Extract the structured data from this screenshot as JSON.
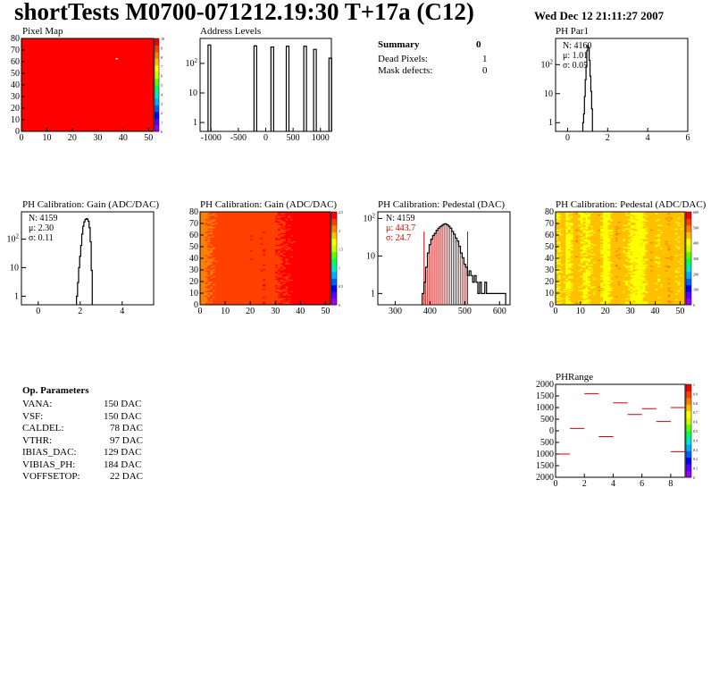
{
  "header": {
    "title": "shortTests M0700-071212.19:30 T+17a (C12)",
    "date": "Wed Dec 12 21:11:27 2007"
  },
  "colors": {
    "frame": "#000000",
    "hist_line": "#000000",
    "fit_red": "#d40000",
    "palette": [
      "#9b00ff",
      "#5a00ff",
      "#0000ff",
      "#0060ff",
      "#00b0ff",
      "#00e8c8",
      "#00ff60",
      "#60ff00",
      "#c8ff00",
      "#ffff00",
      "#ffc000",
      "#ff8000",
      "#ff4000",
      "#ff0000"
    ]
  },
  "summary": {
    "heading": "Summary",
    "heading_value": "0",
    "rows": [
      {
        "label": "Dead Pixels:",
        "value": "1"
      },
      {
        "label": "Mask defects:",
        "value": "0"
      }
    ]
  },
  "op_params": {
    "heading": "Op. Parameters",
    "rows": [
      {
        "name": "VANA:",
        "value": "150 DAC"
      },
      {
        "name": "VSF:",
        "value": "150 DAC"
      },
      {
        "name": "CALDEL:",
        "value": "78 DAC"
      },
      {
        "name": "VTHR:",
        "value": "97 DAC"
      },
      {
        "name": "IBIAS_DAC:",
        "value": "129 DAC"
      },
      {
        "name": "VIBIAS_PH:",
        "value": "184 DAC"
      },
      {
        "name": "VOFFSETOP:",
        "value": "22 DAC"
      }
    ]
  },
  "stats": {
    "ph_par1": {
      "n": "N: 4160",
      "mu": "μ: 1.01",
      "sigma": "σ: 0.05"
    },
    "gain": {
      "n": "N: 4159",
      "mu": "μ: 2.30",
      "sigma": "σ: 0.11"
    },
    "pedestal": {
      "n": "N: 4159",
      "mu": "μ: 443.7",
      "sigma": "σ: 24.7"
    }
  },
  "chart_data": [
    {
      "id": "pixel_map",
      "type": "heatmap",
      "title": "Pixel Map",
      "xlim": [
        0,
        52
      ],
      "ylim": [
        0,
        80
      ],
      "x_ticks": [
        "0",
        "10",
        "20",
        "30",
        "40",
        "50"
      ],
      "y_ticks": [
        "0",
        "10",
        "20",
        "30",
        "40",
        "50",
        "60",
        "70",
        "80"
      ],
      "z_range": [
        0,
        10
      ],
      "z_ticks": [
        "0",
        "1",
        "2",
        "3",
        "4",
        "5",
        "6",
        "7",
        "8",
        "9",
        "10"
      ],
      "fill_value": 10,
      "dead_pixels": [
        {
          "col": 37,
          "row": 62
        }
      ]
    },
    {
      "id": "address_levels",
      "type": "bar",
      "title": "Address Levels",
      "log_y": true,
      "xlim": [
        -1200,
        1200
      ],
      "x_ticks": [
        "-1000",
        "-500",
        "0",
        "500",
        "1000"
      ],
      "y_ticks": [
        "1",
        "10",
        "10^2"
      ],
      "peaks": [
        {
          "x": -1030,
          "height": 420
        },
        {
          "x": -190,
          "height": 390
        },
        {
          "x": 120,
          "height": 360
        },
        {
          "x": 400,
          "height": 380
        },
        {
          "x": 720,
          "height": 380
        },
        {
          "x": 900,
          "height": 300
        },
        {
          "x": 1180,
          "height": 150
        }
      ]
    },
    {
      "id": "ph_par1",
      "type": "bar",
      "title": "PH Par1",
      "log_y": true,
      "xlim": [
        -0.6,
        6
      ],
      "x_ticks": [
        "0",
        "2",
        "4",
        "6"
      ],
      "y_ticks": [
        "1",
        "10",
        "10^2"
      ],
      "bins": [
        [
          0.78,
          1
        ],
        [
          0.82,
          2
        ],
        [
          0.86,
          8
        ],
        [
          0.9,
          30
        ],
        [
          0.94,
          90
        ],
        [
          0.98,
          300
        ],
        [
          1.02,
          450
        ],
        [
          1.06,
          380
        ],
        [
          1.1,
          140
        ],
        [
          1.14,
          40
        ],
        [
          1.18,
          12
        ],
        [
          1.22,
          3
        ]
      ]
    },
    {
      "id": "gain",
      "type": "bar",
      "title": "PH Calibration: Gain (ADC/DAC)",
      "log_y": true,
      "xlim": [
        -0.8,
        5.5
      ],
      "x_ticks": [
        "0",
        "2",
        "4"
      ],
      "y_ticks": [
        "1",
        "10",
        "10^2"
      ],
      "bins": [
        [
          1.85,
          1
        ],
        [
          1.9,
          3
        ],
        [
          1.95,
          10
        ],
        [
          2.0,
          25
        ],
        [
          2.05,
          60
        ],
        [
          2.1,
          150
        ],
        [
          2.15,
          280
        ],
        [
          2.2,
          400
        ],
        [
          2.25,
          480
        ],
        [
          2.3,
          520
        ],
        [
          2.35,
          500
        ],
        [
          2.4,
          420
        ],
        [
          2.45,
          250
        ],
        [
          2.5,
          80
        ],
        [
          2.55,
          8
        ]
      ]
    },
    {
      "id": "gain_map",
      "type": "heatmap",
      "title": "PH Calibration: Gain (ADC/DAC)",
      "xlim": [
        0,
        52
      ],
      "ylim": [
        0,
        80
      ],
      "x_ticks": [
        "0",
        "10",
        "20",
        "30",
        "40",
        "50"
      ],
      "y_ticks": [
        "0",
        "10",
        "20",
        "30",
        "40",
        "50",
        "60",
        "70",
        "80"
      ],
      "z_range": [
        0,
        2.5
      ],
      "z_ticks": [
        "0",
        "0.5",
        "1",
        "1.5",
        "2",
        "2.5"
      ],
      "column_means": [
        2.1,
        2.12,
        2.15,
        2.18,
        2.2,
        2.22,
        2.24,
        2.26,
        2.27,
        2.28,
        2.28,
        2.27,
        2.26,
        2.25,
        2.26,
        2.27,
        2.28,
        2.29,
        2.3,
        2.3,
        2.31,
        2.3,
        2.29,
        2.3,
        2.31,
        2.32,
        2.3,
        2.29,
        2.28,
        2.3,
        2.33,
        2.35,
        2.37,
        2.38,
        2.39,
        2.4,
        2.41,
        2.42,
        2.42,
        2.43,
        2.44,
        2.44,
        2.45,
        2.45,
        2.45,
        2.46,
        2.46,
        2.46,
        2.47,
        2.47,
        2.47,
        2.48
      ]
    },
    {
      "id": "pedestal",
      "type": "bar",
      "title": "PH Calibration: Pedestal (DAC)",
      "log_y": true,
      "xlim": [
        250,
        630
      ],
      "x_ticks": [
        "300",
        "400",
        "500",
        "600"
      ],
      "y_ticks": [
        "1",
        "10",
        "10^2"
      ],
      "fit_range": [
        383,
        508
      ],
      "bins": [
        [
          380,
          1
        ],
        [
          385,
          2
        ],
        [
          390,
          5
        ],
        [
          395,
          12
        ],
        [
          400,
          20
        ],
        [
          405,
          28
        ],
        [
          410,
          35
        ],
        [
          415,
          40
        ],
        [
          420,
          48
        ],
        [
          425,
          55
        ],
        [
          430,
          60
        ],
        [
          435,
          65
        ],
        [
          440,
          70
        ],
        [
          445,
          72
        ],
        [
          450,
          68
        ],
        [
          455,
          62
        ],
        [
          460,
          55
        ],
        [
          465,
          45
        ],
        [
          470,
          38
        ],
        [
          475,
          30
        ],
        [
          480,
          25
        ],
        [
          485,
          18
        ],
        [
          490,
          12
        ],
        [
          495,
          9
        ],
        [
          500,
          6
        ],
        [
          505,
          5
        ],
        [
          510,
          3
        ],
        [
          515,
          4
        ],
        [
          520,
          3
        ],
        [
          525,
          2
        ],
        [
          530,
          3
        ],
        [
          535,
          2
        ],
        [
          540,
          1
        ],
        [
          545,
          2
        ],
        [
          550,
          1
        ],
        [
          555,
          1
        ],
        [
          560,
          2
        ],
        [
          565,
          1
        ],
        [
          575,
          1
        ],
        [
          590,
          1
        ],
        [
          600,
          1
        ],
        [
          615,
          1
        ]
      ]
    },
    {
      "id": "pedestal_map",
      "type": "heatmap",
      "title": "PH Calibration: Pedestal (ADC/DAC)",
      "xlim": [
        0,
        52
      ],
      "ylim": [
        0,
        80
      ],
      "x_ticks": [
        "0",
        "10",
        "20",
        "30",
        "40",
        "50"
      ],
      "y_ticks": [
        "0",
        "10",
        "20",
        "30",
        "40",
        "50",
        "60",
        "70",
        "80"
      ],
      "z_range": [
        0,
        600
      ],
      "z_ticks": [
        "0",
        "100",
        "200",
        "300",
        "400",
        "500",
        "600"
      ],
      "column_means": [
        430,
        425,
        440,
        445,
        415,
        420,
        430,
        450,
        455,
        440,
        430,
        425,
        420,
        430,
        440,
        445,
        450,
        455,
        430,
        410,
        405,
        420,
        440,
        450,
        460,
        455,
        450,
        445,
        440,
        430,
        420,
        415,
        410,
        405,
        400,
        420,
        440,
        450,
        455,
        450,
        445,
        440,
        445,
        450,
        455,
        460,
        455,
        450,
        445,
        440,
        445,
        450
      ]
    },
    {
      "id": "ph_range",
      "type": "scatter",
      "title": "PHRange",
      "xlim": [
        0,
        9
      ],
      "ylim": [
        -2000,
        2000
      ],
      "x_ticks": [
        "0",
        "2",
        "4",
        "6",
        "8"
      ],
      "y_ticks": [
        "2000",
        "1500",
        "1000",
        "500",
        "0",
        "500",
        "1000",
        "1500",
        "2000"
      ],
      "z_ticks": [
        "0",
        "0.1",
        "0.2",
        "0.3",
        "0.4",
        "0.5",
        "0.6",
        "0.7",
        "0.8",
        "0.9",
        "1"
      ],
      "segments": [
        {
          "x": 0,
          "y": -1000
        },
        {
          "x": 1,
          "y": 100
        },
        {
          "x": 2,
          "y": 1600
        },
        {
          "x": 3,
          "y": -250
        },
        {
          "x": 4,
          "y": 1200
        },
        {
          "x": 5,
          "y": 700
        },
        {
          "x": 6,
          "y": 950
        },
        {
          "x": 7,
          "y": 400
        },
        {
          "x": 8,
          "y": 1000
        },
        {
          "x": 8,
          "y": -900
        }
      ]
    }
  ]
}
